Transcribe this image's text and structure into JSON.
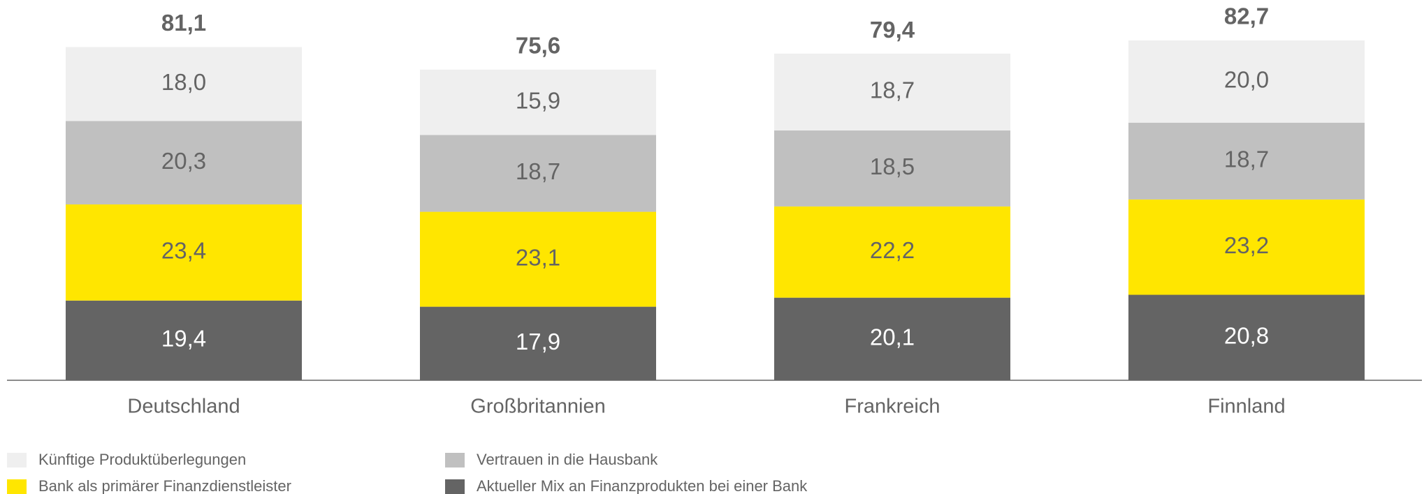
{
  "chart_data": {
    "type": "stacked_bar",
    "categories": [
      "Deutschland",
      "Großbritannien",
      "Frankreich",
      "Finnland"
    ],
    "series": [
      {
        "name": "Aktueller Mix an Finanzprodukten bei einer Bank",
        "color": "#646464",
        "values": [
          19.4,
          17.9,
          20.1,
          20.8
        ],
        "value_labels": [
          "19,4",
          "17,9",
          "20,1",
          "20,8"
        ]
      },
      {
        "name": "Bank als primärer Finanzdienstleister",
        "color": "#ffe600",
        "values": [
          23.4,
          23.1,
          22.2,
          23.2
        ],
        "value_labels": [
          "23,4",
          "23,1",
          "22,2",
          "23,2"
        ]
      },
      {
        "name": "Vertrauen in die Hausbank",
        "color": "#c0c0c0",
        "values": [
          20.3,
          18.7,
          18.5,
          18.7
        ],
        "value_labels": [
          "20,3",
          "18,7",
          "18,5",
          "18,7"
        ]
      },
      {
        "name": "Künftige Produktüberlegungen",
        "color": "#efefef",
        "values": [
          18.0,
          15.9,
          18.7,
          20.0
        ],
        "value_labels": [
          "18,0",
          "15,9",
          "18,7",
          "20,0"
        ]
      }
    ],
    "totals": [
      81.1,
      75.6,
      79.4,
      82.7
    ],
    "total_labels": [
      "81,1",
      "75,6",
      "79,4",
      "82,7"
    ]
  }
}
